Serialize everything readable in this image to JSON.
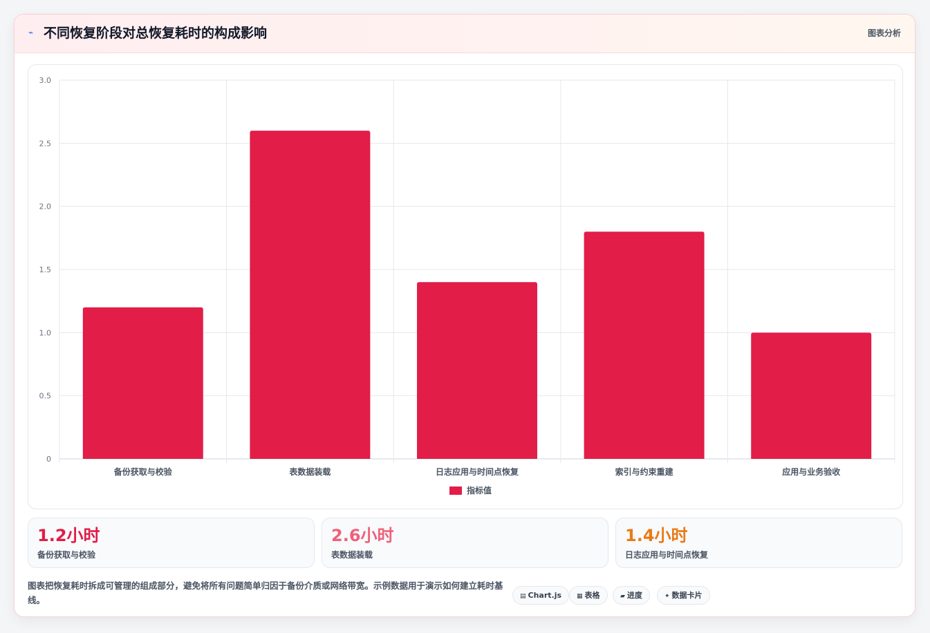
{
  "header": {
    "icon": "trend-line-icon",
    "title": "不同恢复阶段对总恢复耗时的构成影响",
    "tag": "图表分析"
  },
  "chart_data": {
    "type": "bar",
    "categories": [
      "备份获取与校验",
      "表数据装载",
      "日志应用与时间点恢复",
      "索引与约束重建",
      "应用与业务验收"
    ],
    "series": [
      {
        "name": "指标值",
        "values": [
          1.2,
          2.6,
          1.4,
          1.8,
          1.0
        ],
        "color": "#e11d48"
      }
    ],
    "ylim": [
      0,
      3.0
    ],
    "yticks": [
      "0",
      "0.5",
      "1.0",
      "1.5",
      "2.0",
      "2.5",
      "3.0"
    ],
    "grid": true,
    "legend": "bottom"
  },
  "stats": [
    {
      "value": "1.2小时",
      "label": "备份获取与校验",
      "color": "#e11d48"
    },
    {
      "value": "2.6小时",
      "label": "表数据装载",
      "color": "#f0607a"
    },
    {
      "value": "1.4小时",
      "label": "日志应用与时间点恢复",
      "color": "#ea7a16"
    }
  ],
  "footer": {
    "note": "图表把恢复耗时拆成可管理的组成部分，避免将所有问题简单归因于备份介质或网络带宽。示例数据用于演示如何建立耗时基线。",
    "chips": [
      {
        "icon": "chart-icon",
        "glyph": "▤",
        "label": "Chart.js"
      },
      {
        "icon": "table-icon",
        "glyph": "▦",
        "label": "表格"
      },
      {
        "icon": "progress-icon",
        "glyph": "▰",
        "label": "进度"
      },
      {
        "icon": "sparkle-icon",
        "glyph": "✦",
        "label": "数据卡片"
      }
    ]
  }
}
